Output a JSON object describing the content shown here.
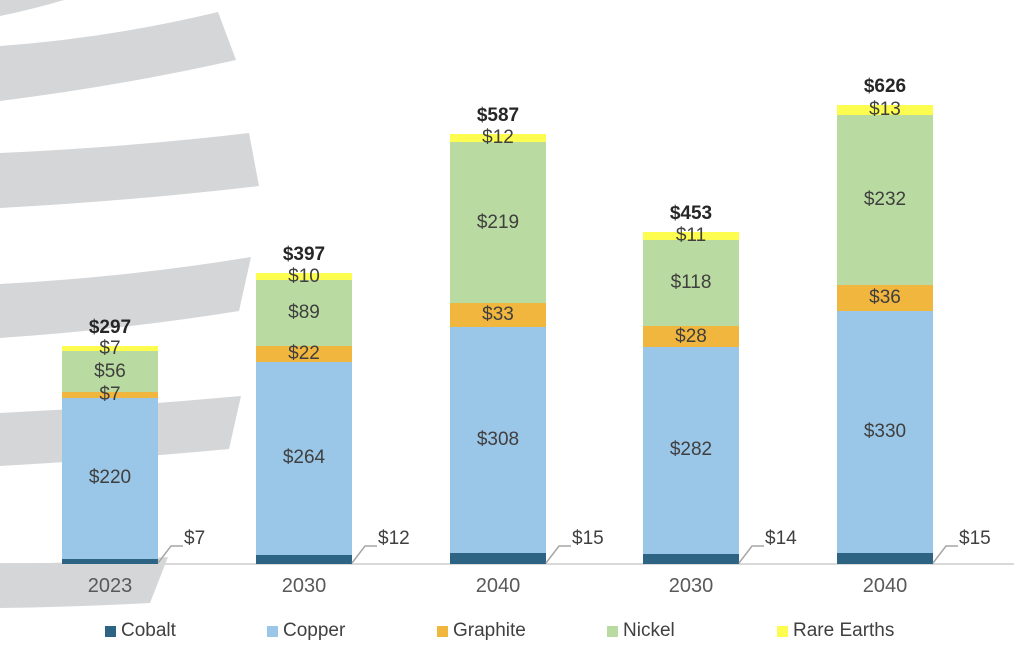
{
  "chart_data": {
    "type": "bar",
    "stacked": true,
    "currency_prefix": "$",
    "categories": [
      "2023",
      "2030",
      "2040",
      "2030",
      "2040"
    ],
    "totals": [
      297,
      397,
      587,
      453,
      626
    ],
    "series": [
      {
        "name": "Cobalt",
        "color": "#2d6484",
        "values": [
          7,
          12,
          15,
          14,
          15
        ],
        "label_placement": "callout"
      },
      {
        "name": "Copper",
        "color": "#9ac6e7",
        "values": [
          220,
          264,
          308,
          282,
          330
        ],
        "label_placement": "inside"
      },
      {
        "name": "Graphite",
        "color": "#f1b63d",
        "values": [
          7,
          22,
          33,
          28,
          36
        ],
        "label_placement": "inside"
      },
      {
        "name": "Nickel",
        "color": "#b9dba1",
        "values": [
          56,
          89,
          219,
          118,
          232
        ],
        "label_placement": "inside"
      },
      {
        "name": "Rare Earths",
        "color": "#fcfd4f",
        "values": [
          7,
          10,
          12,
          11,
          13
        ],
        "label_placement": "inside"
      }
    ],
    "legend": [
      "Cobalt",
      "Copper",
      "Graphite",
      "Nickel",
      "Rare Earths"
    ],
    "legend_position": "bottom",
    "axis": {
      "x_labels": [
        "2023",
        "2030",
        "2040",
        "2030",
        "2040"
      ],
      "y_axis_visible": false,
      "gridlines": false
    }
  },
  "styles": {
    "background": "#ffffff",
    "axis_line_color": "#d9d9d9",
    "watermark_color": "#d4d6d8",
    "segment_label_color": "#3f3f3f",
    "total_label_color": "#262626",
    "category_label_color": "#595959",
    "legend_text_color": "#404040",
    "leader_line_color": "#a6a6a6"
  }
}
